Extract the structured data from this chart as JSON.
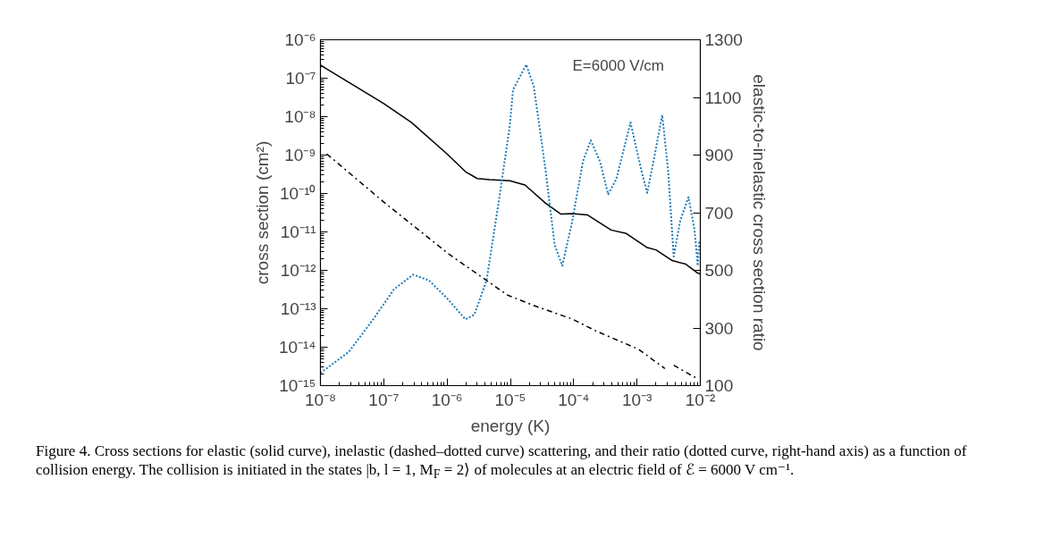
{
  "chart_data": {
    "type": "line",
    "xlabel": "energy (K)",
    "ylabel": "cross section (cm²)",
    "y2label": "elastic-to-inelastic cross section ratio",
    "log": "xy",
    "grid": false,
    "xlim": [
      1e-08,
      0.01
    ],
    "xticks": [
      {
        "value": 1e-08,
        "label": "10⁻⁸"
      },
      {
        "value": 1e-07,
        "label": "10⁻⁷"
      },
      {
        "value": 1e-06,
        "label": "10⁻⁶"
      },
      {
        "value": 1e-05,
        "label": "10⁻⁵"
      },
      {
        "value": 0.0001,
        "label": "10⁻⁴"
      },
      {
        "value": 0.001,
        "label": "10⁻³"
      },
      {
        "value": 0.01,
        "label": "10⁻²"
      }
    ],
    "ylim": [
      1e-15,
      1e-06
    ],
    "yticks": [
      {
        "value": 1e-15,
        "label": "10⁻¹⁵"
      },
      {
        "value": 1e-14,
        "label": "10⁻¹⁴"
      },
      {
        "value": 1e-13,
        "label": "10⁻¹³"
      },
      {
        "value": 1e-12,
        "label": "10⁻¹²"
      },
      {
        "value": 1e-11,
        "label": "10⁻¹¹"
      },
      {
        "value": 1e-10,
        "label": "10⁻¹⁰"
      },
      {
        "value": 1e-09,
        "label": "10⁻⁹"
      },
      {
        "value": 1e-08,
        "label": "10⁻⁸"
      },
      {
        "value": 1e-07,
        "label": "10⁻⁷"
      },
      {
        "value": 1e-06,
        "label": "10⁻⁶"
      }
    ],
    "y2lim": [
      100,
      1300
    ],
    "y2ticks": [
      100,
      300,
      500,
      700,
      900,
      1100,
      1300
    ],
    "series": [
      {
        "color": "#000000",
        "line_style": "solid",
        "x": [
          1e-08,
          1e-07,
          2.75e-07,
          1e-06,
          1.95e-06,
          3e-06,
          4.7e-06,
          9.8e-06,
          1.7e-05,
          3.6e-05,
          6.3e-05,
          9.5e-05,
          0.000166,
          0.00039,
          0.00068,
          0.00145,
          0.002,
          0.0036,
          0.0059,
          0.0091,
          0.01
        ],
        "values": [
          2.2e-07,
          2.2e-08,
          7e-09,
          1.07e-09,
          3.7e-10,
          2.45e-10,
          2.3e-10,
          2.15e-10,
          1.66e-10,
          5.6e-11,
          2.9e-11,
          3e-11,
          2.75e-11,
          1.12e-11,
          9.1e-12,
          3.9e-12,
          3.4e-12,
          1.8e-12,
          1.45e-12,
          8.5e-13,
          8e-13
        ]
      },
      {
        "color": "#000000",
        "line_style": "dashdot",
        "x": [
          1.26e-08,
          1.05e-07,
          1.05e-06,
          8.9e-06,
          2.1e-05,
          9.5e-05,
          0.00023,
          0.00105,
          0.00275,
          0.0032,
          0.0038,
          0.0081,
          0.0095
        ],
        "values": [
          1.07e-09,
          5.6e-11,
          2.7e-12,
          2.3e-13,
          1.3e-13,
          5.4e-14,
          2.6e-14,
          8.9e-15,
          2.8e-15,
          null,
          3.4e-15,
          1.66e-15,
          1.8e-15
        ]
      },
      {
        "color": "#1f7ab8",
        "line_style": "dotted",
        "axis": "y2",
        "x": [
          1e-08,
          2.8e-08,
          6.8e-08,
          1.45e-07,
          2.9e-07,
          5.2e-07,
          1e-06,
          1.95e-06,
          2.7e-06,
          4.2e-06,
          6.5e-06,
          9.8e-06,
          1.1e-05,
          1.78e-05,
          2.35e-05,
          3.6e-05,
          5e-05,
          6.6e-05,
          9.5e-05,
          0.00014,
          0.000186,
          0.00026,
          0.00035,
          0.00047,
          0.00079,
          0.00117,
          0.00145,
          0.0019,
          0.0025,
          0.0031,
          0.0038,
          0.0048,
          0.0065,
          0.0081,
          0.0091,
          0.0096
        ],
        "values": [
          144,
          217,
          330,
          434,
          485,
          465,
          403,
          330,
          346,
          465,
          733,
          1002,
          1126,
          1214,
          1137,
          847,
          589,
          516,
          671,
          878,
          951,
          878,
          764,
          816,
          1013,
          847,
          769,
          899,
          1039,
          847,
          548,
          671,
          754,
          640,
          516,
          599
        ]
      }
    ],
    "annotations": [
      "E=6000 V/cm",
      "Figure 4. Cross sections for elastic (solid curve), inelastic (dashed–dotted curve) scattering, and their ratio (dotted curve, right-hand axis) as a function of collision energy. The collision is initiated in the states |b, l = 1, M$_{F}$ = 2⟩ of molecules at an electric field of ℰ = 6000 V cm⁻¹."
    ]
  }
}
